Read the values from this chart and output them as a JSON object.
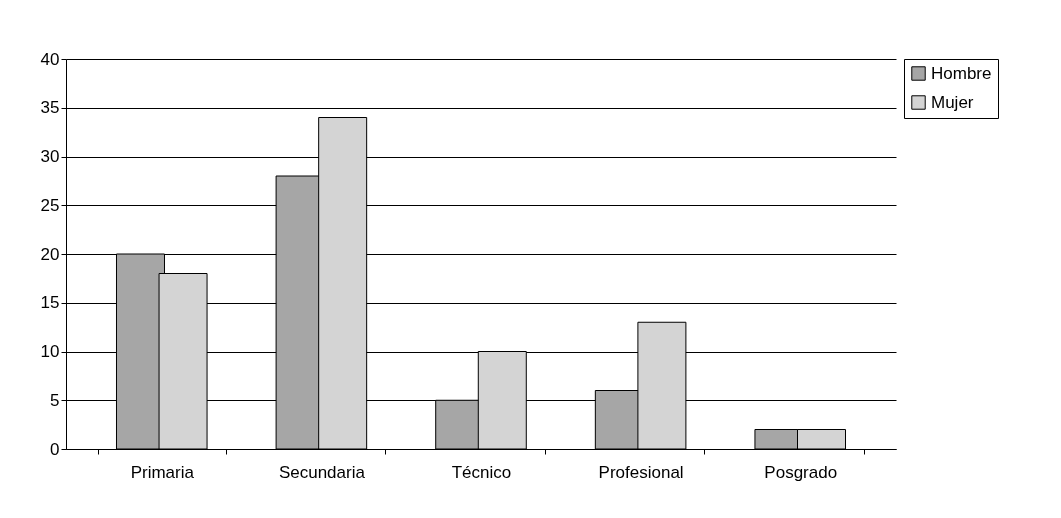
{
  "chart_data": {
    "type": "bar",
    "categories": [
      "Primaria",
      "Secundaria",
      "Técnico",
      "Profesional",
      "Posgrado"
    ],
    "series": [
      {
        "name": "Hombre",
        "color": "#a6a6a6",
        "values": [
          20,
          28,
          5,
          6,
          2
        ]
      },
      {
        "name": "Mujer",
        "color": "#d4d4d4",
        "values": [
          18,
          34,
          10,
          13,
          2
        ]
      }
    ],
    "ylim": [
      0,
      40
    ],
    "yticks": [
      0,
      5,
      10,
      15,
      20,
      25,
      30,
      35,
      40
    ],
    "grid": "y",
    "legend": "right"
  }
}
